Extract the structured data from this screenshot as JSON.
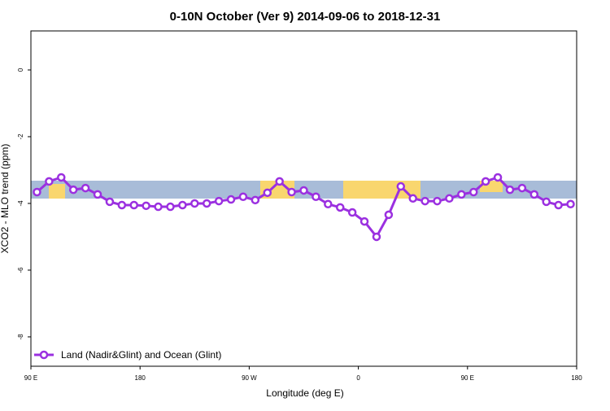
{
  "chart_data": {
    "type": "line",
    "title": "0-10N October (Ver 9)   2014-09-06 to 2018-12-31",
    "x_label": "Longitude (deg E)",
    "y_label": "XCO2 - MLO trend (ppm)",
    "xlim": [
      90,
      540
    ],
    "ylim": [
      -8.88,
      1.17
    ],
    "xticks": [
      {
        "value": 90,
        "label": "90 E"
      },
      {
        "value": 180,
        "label": "180"
      },
      {
        "value": 270,
        "label": "90 W"
      },
      {
        "value": 360,
        "label": "0"
      },
      {
        "value": 450,
        "label": "90 E"
      },
      {
        "value": 540,
        "label": "180"
      }
    ],
    "yticks": [
      0,
      -2,
      -4,
      -6,
      -8
    ],
    "legend_position": "bottom-left",
    "series": [
      {
        "name": "Land (Nadir&Glint) and Ocean (Glint)",
        "color": "#9b30e0",
        "x": [
          95,
          105,
          115,
          125,
          135,
          145,
          155,
          165,
          175,
          185,
          195,
          205,
          215,
          225,
          235,
          245,
          255,
          265,
          275,
          285,
          295,
          305,
          315,
          325,
          335,
          345,
          355,
          365,
          375,
          385,
          395,
          405,
          415,
          425,
          435,
          445,
          455,
          465,
          475,
          485,
          495,
          505,
          515,
          525,
          535
        ],
        "values": [
          -3.66,
          -3.34,
          -3.22,
          -3.59,
          -3.54,
          -3.73,
          -3.95,
          -4.05,
          -4.05,
          -4.07,
          -4.1,
          -4.1,
          -4.05,
          -4.0,
          -4.0,
          -3.93,
          -3.88,
          -3.8,
          -3.9,
          -3.68,
          -3.34,
          -3.66,
          -3.61,
          -3.8,
          -4.02,
          -4.12,
          -4.27,
          -4.54,
          -5.0,
          -4.34,
          -3.49,
          -3.85,
          -3.93,
          -3.93,
          -3.85,
          -3.73,
          -3.66,
          -3.34,
          -3.22,
          -3.59,
          -3.54,
          -3.73,
          -3.95,
          -4.05,
          -4.02
        ]
      }
    ]
  }
}
